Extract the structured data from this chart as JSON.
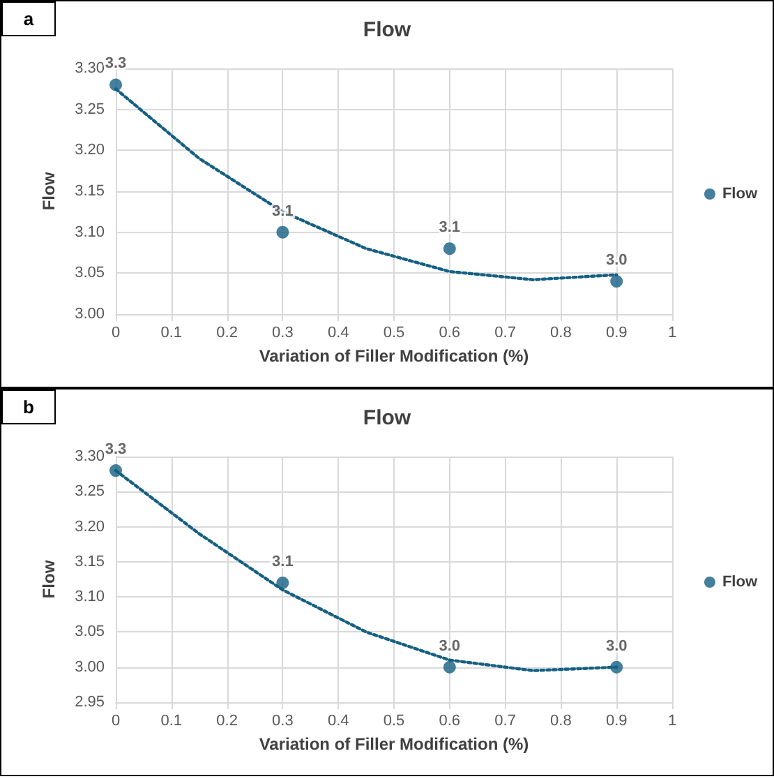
{
  "chart_data": [
    {
      "type": "scatter",
      "title": "Flow",
      "xlabel": "Variation of Filler Modification (%)",
      "ylabel": "Flow",
      "annotations": [
        "a"
      ],
      "grid": true,
      "legend": "right",
      "marker": "circle",
      "xlim": [
        0,
        1
      ],
      "xticks": [
        0,
        0.1,
        0.2,
        0.3,
        0.4,
        0.5,
        0.6,
        0.7,
        0.8,
        0.9,
        1
      ],
      "ylim": [
        3.0,
        3.3
      ],
      "yticks": [
        {
          "value": 3.0,
          "label": "3.00"
        },
        {
          "value": 3.05,
          "label": "3.05"
        },
        {
          "value": 3.1,
          "label": "3.10"
        },
        {
          "value": 3.15,
          "label": "3.15"
        },
        {
          "value": 3.2,
          "label": "3.20"
        },
        {
          "value": 3.25,
          "label": "3.25"
        },
        {
          "value": 3.3,
          "label": "3.30"
        }
      ],
      "series": [
        {
          "name": "Flow",
          "color": "#156082",
          "x": [
            0,
            0.3,
            0.6,
            0.9
          ],
          "values": [
            3.28,
            3.1,
            3.08,
            3.04
          ],
          "value_labels": [
            "3.3",
            "3.1",
            "3.1",
            "3.0"
          ]
        },
        {
          "type": "line",
          "color": "#156082",
          "marker": "none",
          "line_style": "dotted",
          "x": [
            0,
            0.15,
            0.3,
            0.45,
            0.6,
            0.75,
            0.9
          ],
          "values": [
            3.275,
            3.19,
            3.125,
            3.08,
            3.052,
            3.042,
            3.048
          ]
        }
      ]
    },
    {
      "type": "scatter",
      "title": "Flow",
      "xlabel": "Variation of Filler Modification (%)",
      "ylabel": "Flow",
      "annotations": [
        "b"
      ],
      "grid": true,
      "legend": "right",
      "marker": "circle",
      "xlim": [
        0,
        1
      ],
      "xticks": [
        0,
        0.1,
        0.2,
        0.3,
        0.4,
        0.5,
        0.6,
        0.7,
        0.8,
        0.9,
        1
      ],
      "ylim": [
        2.95,
        3.3
      ],
      "yticks": [
        {
          "value": 2.95,
          "label": "2.95"
        },
        {
          "value": 3.0,
          "label": "3.00"
        },
        {
          "value": 3.05,
          "label": "3.05"
        },
        {
          "value": 3.1,
          "label": "3.10"
        },
        {
          "value": 3.15,
          "label": "3.15"
        },
        {
          "value": 3.2,
          "label": "3.20"
        },
        {
          "value": 3.25,
          "label": "3.25"
        },
        {
          "value": 3.3,
          "label": "3.30"
        }
      ],
      "series": [
        {
          "name": "Flow",
          "color": "#156082",
          "x": [
            0,
            0.3,
            0.6,
            0.9
          ],
          "values": [
            3.28,
            3.12,
            3.0,
            3.0
          ],
          "value_labels": [
            "3.3",
            "3.1",
            "3.0",
            "3.0"
          ]
        },
        {
          "type": "line",
          "color": "#156082",
          "marker": "none",
          "line_style": "dotted",
          "x": [
            0,
            0.15,
            0.3,
            0.45,
            0.6,
            0.75,
            0.9
          ],
          "values": [
            3.28,
            3.19,
            3.11,
            3.05,
            3.01,
            2.995,
            3.0
          ]
        }
      ]
    }
  ]
}
